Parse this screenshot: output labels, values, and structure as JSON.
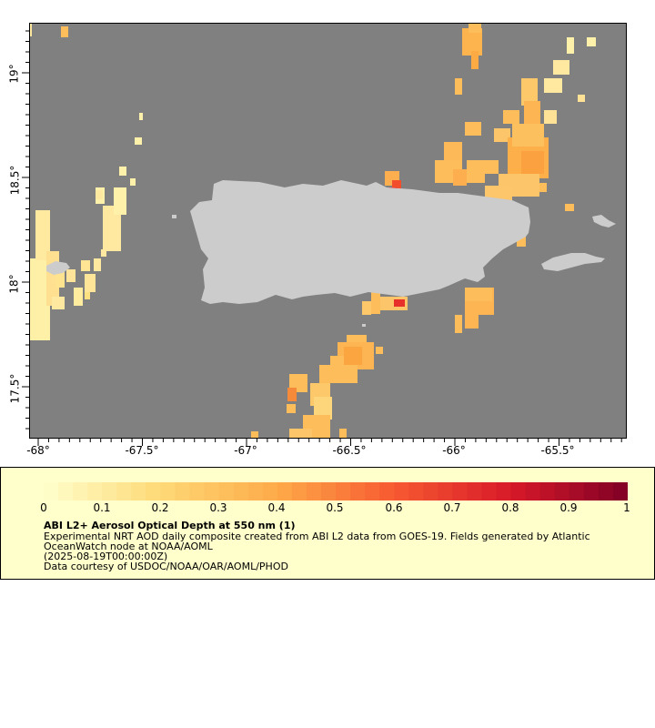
{
  "map": {
    "y_ticks": [
      "19°",
      "18.5°",
      "18°",
      "17.5°"
    ],
    "x_ticks": [
      "-68°",
      "-67.5°",
      "-67°",
      "-66.5°",
      "-66°",
      "-65.5°"
    ],
    "lon_range": [
      -68.05,
      -65.2
    ],
    "lat_range": [
      17.22,
      19.24
    ],
    "colors": {
      "ocean": "#808080",
      "land": "#cccccc"
    }
  },
  "legend": {
    "ticks": [
      "0",
      "0.1",
      "0.2",
      "0.3",
      "0.4",
      "0.5",
      "0.6",
      "0.7",
      "0.8",
      "0.9",
      "1"
    ],
    "range": [
      0,
      1
    ],
    "title": "ABI L2+ Aerosol Optical Depth at 550 nm (1)",
    "line1": "Experimental NRT AOD daily composite created from ABI L2 data from GOES-19. Fields generated by Atlantic",
    "line2": "OceanWatch node at NOAA/AOML",
    "line3": "(2025-08-19T00:00:00Z)",
    "line4": "Data courtesy of USDOC/NOAA/OAR/AOML/PHOD"
  }
}
